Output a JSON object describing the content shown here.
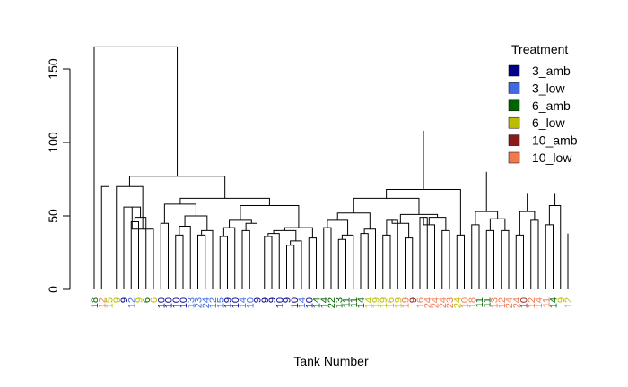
{
  "chart_data": {
    "type": "dendrogram",
    "xlabel": "Tank Number",
    "ylabel": "",
    "ylim": [
      0,
      165
    ],
    "y_ticks": [
      0,
      50,
      100,
      150
    ],
    "grid": false,
    "legend_position": "top-right",
    "legend": {
      "title": "Treatment",
      "entries": [
        {
          "label": "3_amb",
          "color": "#00008B"
        },
        {
          "label": "3_low",
          "color": "#4169E1"
        },
        {
          "label": "6_amb",
          "color": "#006400"
        },
        {
          "label": "6_low",
          "color": "#BDBD00"
        },
        {
          "label": "10_amb",
          "color": "#8B1A1A"
        },
        {
          "label": "10_low",
          "color": "#F07A50"
        }
      ]
    },
    "leaves": [
      {
        "label": "18",
        "group": "6_amb"
      },
      {
        "label": "12",
        "group": "10_low"
      },
      {
        "label": "15",
        "group": "6_low"
      },
      {
        "label": "9",
        "group": "6_low"
      },
      {
        "label": "9",
        "group": "3_amb"
      },
      {
        "label": "12",
        "group": "3_low"
      },
      {
        "label": "9",
        "group": "6_low"
      },
      {
        "label": "6",
        "group": "6_amb"
      },
      {
        "label": "6",
        "group": "6_low"
      },
      {
        "label": "10",
        "group": "3_amb"
      },
      {
        "label": "10",
        "group": "3_amb"
      },
      {
        "label": "10",
        "group": "3_amb"
      },
      {
        "label": "10",
        "group": "3_amb"
      },
      {
        "label": "13",
        "group": "3_low"
      },
      {
        "label": "23",
        "group": "3_low"
      },
      {
        "label": "24",
        "group": "3_low"
      },
      {
        "label": "12",
        "group": "3_low"
      },
      {
        "label": "15",
        "group": "3_low"
      },
      {
        "label": "19",
        "group": "3_amb"
      },
      {
        "label": "10",
        "group": "3_amb"
      },
      {
        "label": "14",
        "group": "3_low"
      },
      {
        "label": "10",
        "group": "3_low"
      },
      {
        "label": "9",
        "group": "3_amb"
      },
      {
        "label": "9",
        "group": "3_amb"
      },
      {
        "label": "9",
        "group": "3_amb"
      },
      {
        "label": "10",
        "group": "3_amb"
      },
      {
        "label": "9",
        "group": "3_amb"
      },
      {
        "label": "10",
        "group": "3_amb"
      },
      {
        "label": "14",
        "group": "3_low"
      },
      {
        "label": "10",
        "group": "3_amb"
      },
      {
        "label": "14",
        "group": "6_amb"
      },
      {
        "label": "14",
        "group": "6_amb"
      },
      {
        "label": "22",
        "group": "6_amb"
      },
      {
        "label": "13",
        "group": "6_amb"
      },
      {
        "label": "11",
        "group": "6_amb"
      },
      {
        "label": "11",
        "group": "6_amb"
      },
      {
        "label": "14",
        "group": "6_amb"
      },
      {
        "label": "14",
        "group": "6_low"
      },
      {
        "label": "19",
        "group": "6_low"
      },
      {
        "label": "19",
        "group": "6_low"
      },
      {
        "label": "16",
        "group": "6_low"
      },
      {
        "label": "19",
        "group": "6_low"
      },
      {
        "label": "19",
        "group": "10_low"
      },
      {
        "label": "9",
        "group": "10_amb"
      },
      {
        "label": "16",
        "group": "10_low"
      },
      {
        "label": "24",
        "group": "10_low"
      },
      {
        "label": "24",
        "group": "10_low"
      },
      {
        "label": "24",
        "group": "10_low"
      },
      {
        "label": "23",
        "group": "10_low"
      },
      {
        "label": "24",
        "group": "6_low"
      },
      {
        "label": "10",
        "group": "10_low"
      },
      {
        "label": "18",
        "group": "10_low"
      },
      {
        "label": "11",
        "group": "6_amb"
      },
      {
        "label": "11",
        "group": "6_amb"
      },
      {
        "label": "13",
        "group": "10_low"
      },
      {
        "label": "12",
        "group": "10_low"
      },
      {
        "label": "24",
        "group": "10_low"
      },
      {
        "label": "24",
        "group": "10_low"
      },
      {
        "label": "10",
        "group": "10_amb"
      },
      {
        "label": "12",
        "group": "10_low"
      },
      {
        "label": "14",
        "group": "10_low"
      },
      {
        "label": "11",
        "group": "10_low"
      },
      {
        "label": "14",
        "group": "6_amb"
      },
      {
        "label": "9",
        "group": "6_low"
      },
      {
        "label": "12",
        "group": "6_low"
      }
    ],
    "merges": [
      [
        1,
        2,
        70
      ],
      [
        5,
        6,
        46
      ],
      [
        5,
        7,
        49
      ],
      [
        4,
        5,
        56
      ],
      [
        4,
        8,
        41
      ],
      [
        3,
        4,
        70
      ],
      [
        9,
        10,
        45
      ],
      [
        11,
        12,
        37
      ],
      [
        11,
        13,
        43
      ],
      [
        14,
        15,
        37
      ],
      [
        14,
        16,
        40
      ],
      [
        11,
        14,
        50
      ],
      [
        9,
        11,
        58
      ],
      [
        17,
        18,
        36
      ],
      [
        17,
        19,
        42
      ],
      [
        20,
        21,
        40
      ],
      [
        20,
        22,
        45
      ],
      [
        17,
        20,
        47
      ],
      [
        23,
        24,
        36
      ],
      [
        23,
        25,
        38
      ],
      [
        26,
        27,
        30
      ],
      [
        26,
        28,
        33
      ],
      [
        23,
        26,
        40
      ],
      [
        29,
        30,
        35
      ],
      [
        23,
        29,
        42
      ],
      [
        17,
        23,
        57
      ],
      [
        9,
        17,
        62
      ],
      [
        3,
        9,
        77
      ],
      [
        31,
        32,
        42
      ],
      [
        33,
        34,
        34
      ],
      [
        33,
        35,
        37
      ],
      [
        31,
        33,
        47
      ],
      [
        36,
        37,
        38
      ],
      [
        36,
        38,
        41
      ],
      [
        31,
        36,
        52
      ],
      [
        39,
        40,
        37
      ],
      [
        39,
        41,
        47
      ],
      [
        42,
        43,
        35
      ],
      [
        39,
        42,
        45
      ],
      [
        44,
        45,
        49
      ],
      [
        44,
        46,
        44
      ],
      [
        47,
        48,
        40
      ],
      [
        44,
        47,
        49
      ],
      [
        39,
        44,
        51
      ],
      [
        31,
        39,
        62
      ],
      [
        49,
        50,
        37
      ],
      [
        31,
        49,
        68
      ],
      [
        51,
        52,
        44
      ],
      [
        53,
        54,
        40
      ],
      [
        55,
        56,
        40
      ],
      [
        53,
        55,
        48
      ],
      [
        51,
        53,
        53
      ],
      [
        57,
        58,
        37
      ],
      [
        59,
        60,
        47
      ],
      [
        57,
        59,
        53
      ],
      [
        61,
        62,
        44
      ],
      [
        61,
        63,
        57
      ],
      [
        64,
        65,
        38
      ],
      [
        61,
        64,
        65
      ],
      [
        57,
        61,
        65
      ],
      [
        51,
        57,
        80
      ],
      [
        31,
        51,
        108
      ],
      [
        0,
        3,
        165
      ]
    ]
  }
}
